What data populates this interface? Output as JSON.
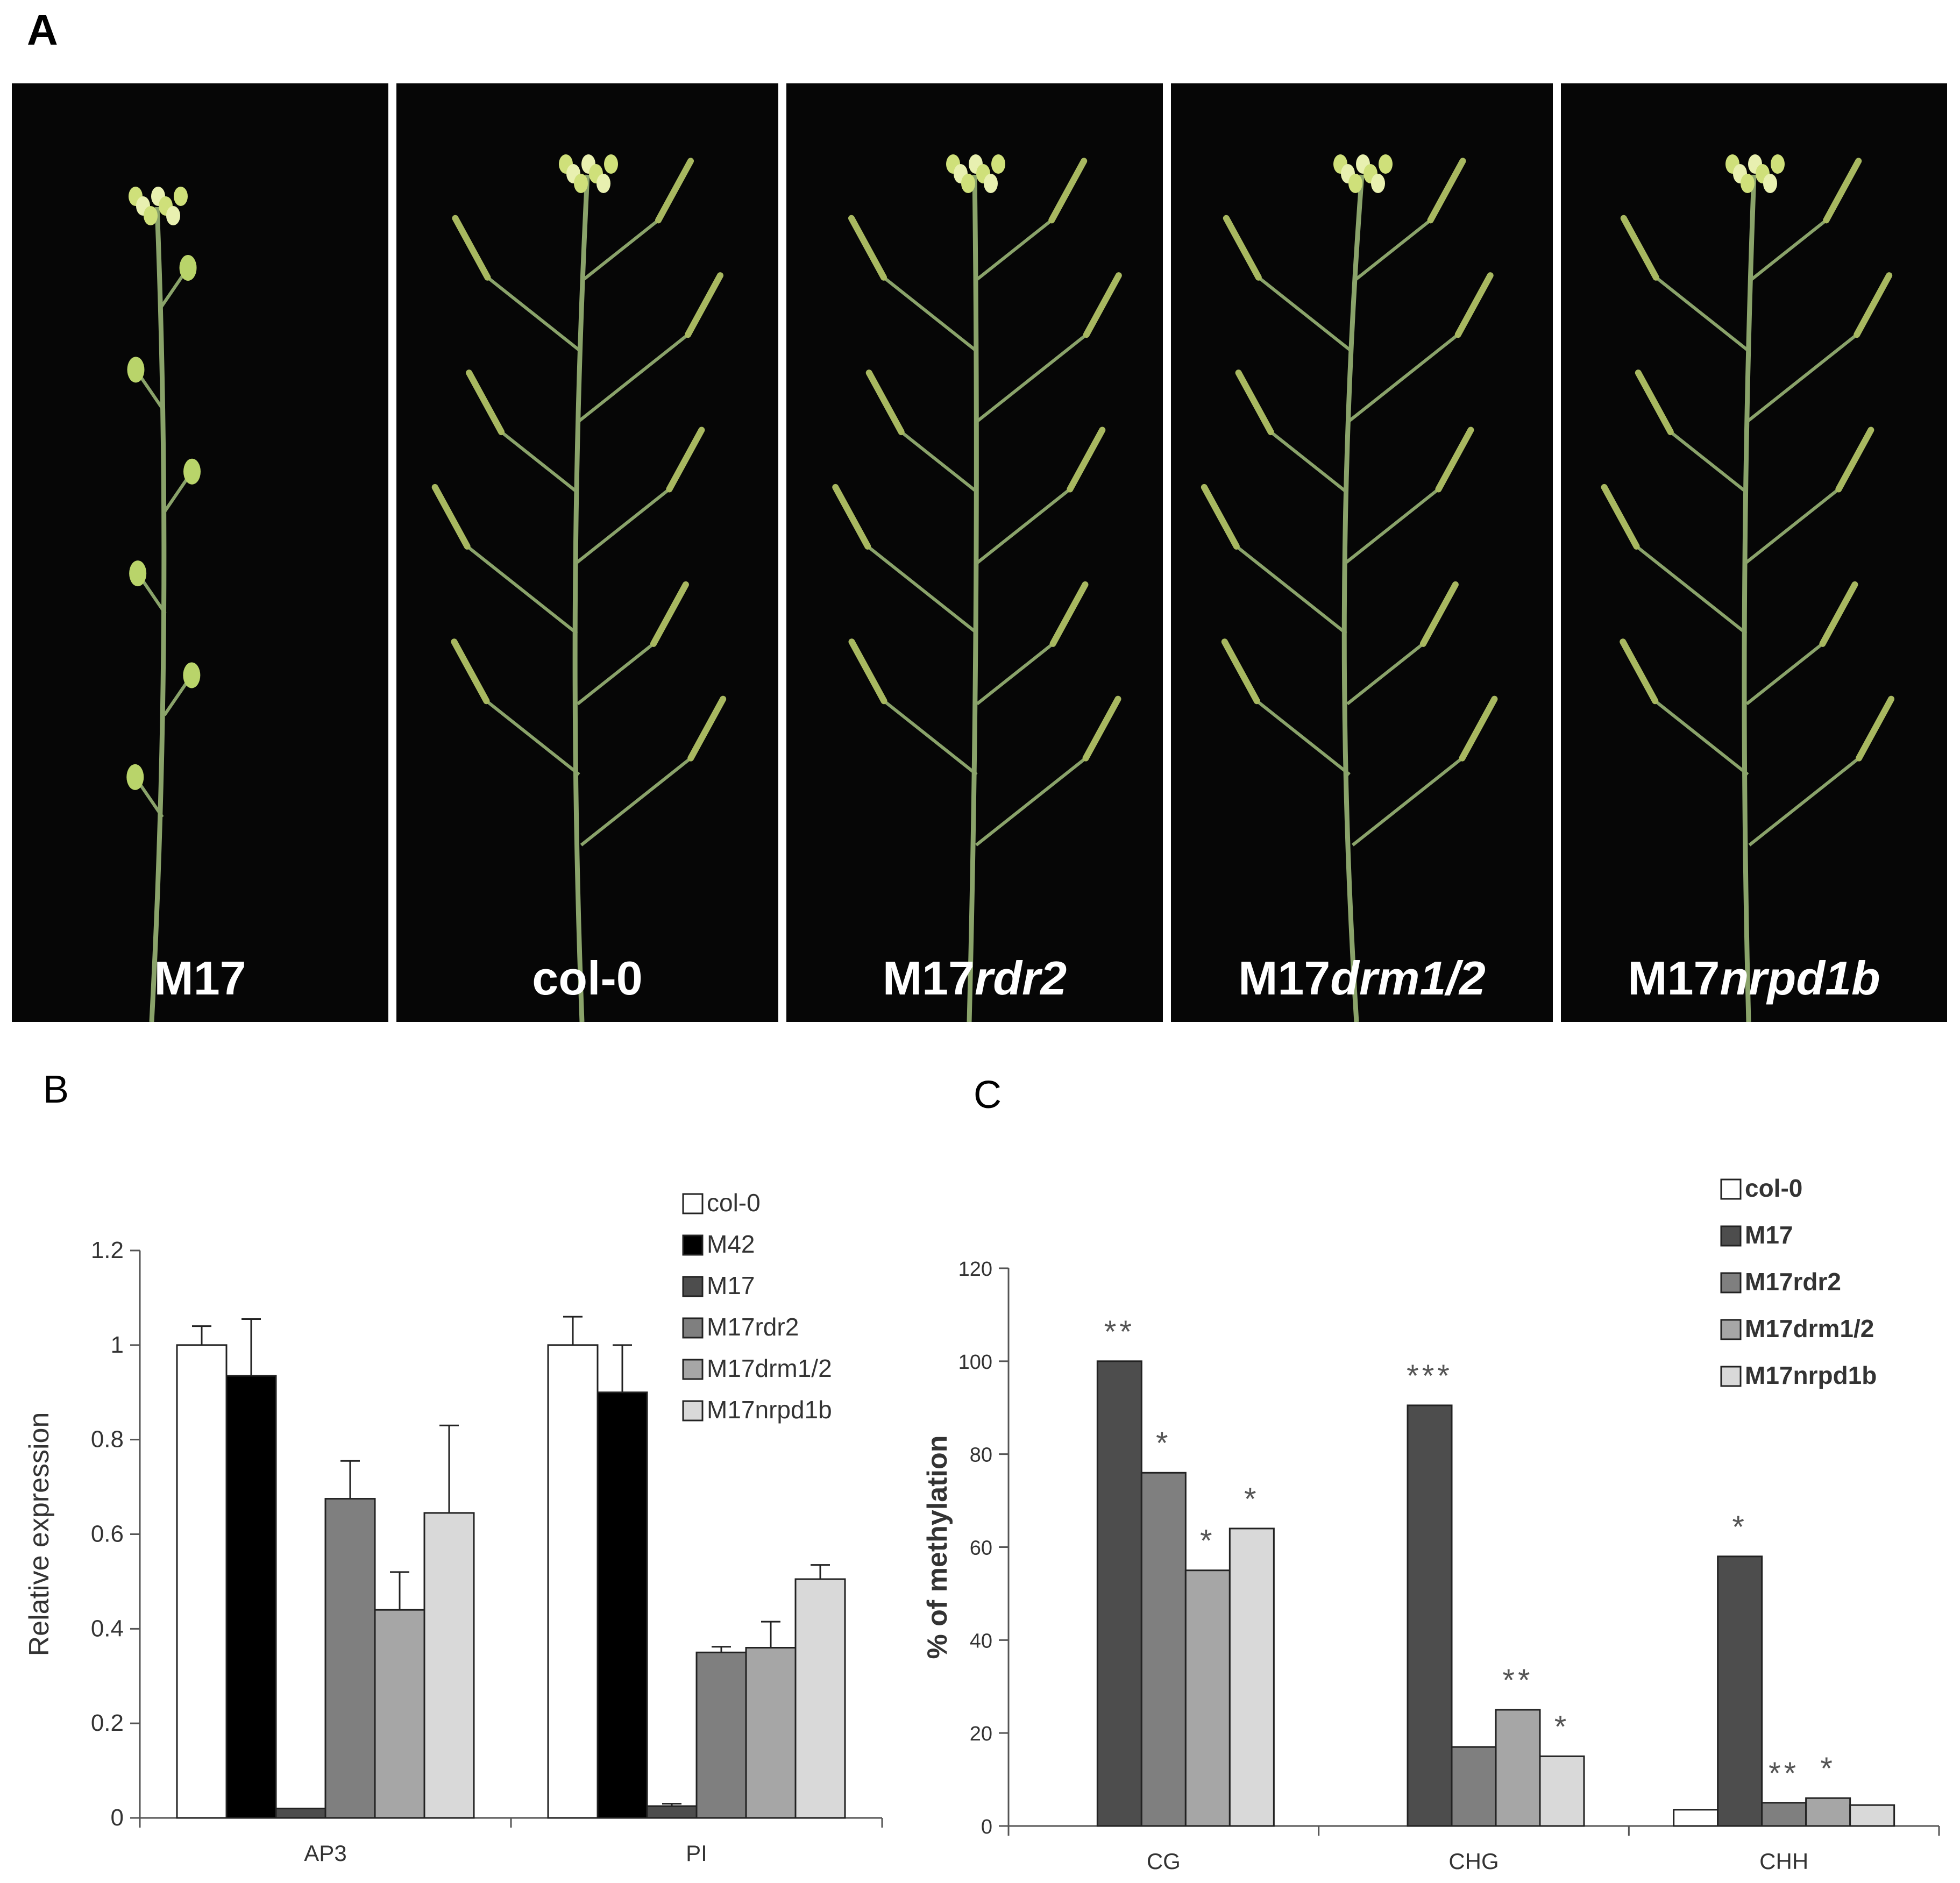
{
  "panels": {
    "a": "A",
    "b": "B",
    "c": "C"
  },
  "photos": [
    {
      "label": "M17",
      "italic": ""
    },
    {
      "label": "col-0",
      "italic": ""
    },
    {
      "label": "M17",
      "italic": "rdr2"
    },
    {
      "label": "M17",
      "italic": "drm1/2"
    },
    {
      "label": "M17",
      "italic": "nrpd1b"
    }
  ],
  "colors": {
    "col-0": "#ffffff",
    "M42": "#000000",
    "M17": "#4d4d4d",
    "M17rdr2": "#7f7f7f",
    "M17drm1/2": "#a6a6a6",
    "M17nrpd1b": "#d9d9d9",
    "stem": "#8aa36a"
  },
  "chart_data": [
    {
      "type": "bar",
      "ylabel": "Relative expression",
      "xlabel": "",
      "categories": [
        "AP3",
        "PI"
      ],
      "ylim": [
        0,
        1.2
      ],
      "yticks": [
        "0",
        "0.2",
        "0.4",
        "0.6",
        "0.8",
        "1",
        "1.2"
      ],
      "legend": "top-right",
      "series": [
        {
          "name": "col-0",
          "values": [
            1.0,
            1.0
          ],
          "errors": [
            0.04,
            0.06
          ]
        },
        {
          "name": "M42",
          "values": [
            0.935,
            0.9
          ],
          "errors": [
            0.12,
            0.1
          ]
        },
        {
          "name": "M17",
          "values": [
            0.02,
            0.025
          ],
          "errors": [
            0,
            0.005
          ]
        },
        {
          "name": "M17rdr2",
          "values": [
            0.675,
            0.35
          ],
          "errors": [
            0.08,
            0.012
          ]
        },
        {
          "name": "M17drm1/2",
          "values": [
            0.44,
            0.36
          ],
          "errors": [
            0.08,
            0.055
          ]
        },
        {
          "name": "M17nrpd1b",
          "values": [
            0.645,
            0.505
          ],
          "errors": [
            0.185,
            0.03
          ]
        }
      ]
    },
    {
      "type": "bar",
      "ylabel": "% of methylation",
      "xlabel": "",
      "categories": [
        "CG",
        "CHG",
        "CHH"
      ],
      "ylim": [
        0,
        120
      ],
      "yticks": [
        "0",
        "20",
        "40",
        "60",
        "80",
        "100",
        "120"
      ],
      "legend": "top-right",
      "series": [
        {
          "name": "col-0",
          "values": [
            0,
            0,
            3.5
          ],
          "stars": [
            "",
            "",
            ""
          ]
        },
        {
          "name": "M17",
          "values": [
            100,
            90.5,
            58
          ],
          "stars": [
            "**",
            "***",
            "*"
          ]
        },
        {
          "name": "M17rdr2",
          "values": [
            76,
            17,
            5
          ],
          "stars": [
            "*",
            "",
            "**"
          ]
        },
        {
          "name": "M17drm1/2",
          "values": [
            55,
            25,
            6
          ],
          "stars": [
            "*",
            "**",
            "*"
          ]
        },
        {
          "name": "M17nrpd1b",
          "values": [
            64,
            15,
            4.5
          ],
          "stars": [
            "*",
            "*",
            ""
          ]
        }
      ]
    }
  ]
}
